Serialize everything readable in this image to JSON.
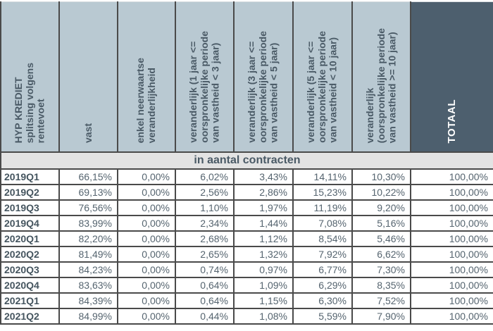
{
  "colors": {
    "header_bg": "#b9c9d2",
    "header_text": "#4a5a66",
    "totaal_bg": "#4d5f6e",
    "totaal_text": "#ffffff",
    "subheader_bg": "#e3e3e3",
    "border": "#4a4a4a",
    "data_text": "#55646f",
    "label_text": "#45555f",
    "row_bg": "#ffffff"
  },
  "table": {
    "columns": [
      {
        "label": "HYP KREDIET\nsplitsing volgens\nrentevoet"
      },
      {
        "label": "vast"
      },
      {
        "label": "enkel neerwaartse\nveranderlijkheid"
      },
      {
        "label": "veranderlijk (1 jaar <=\noorspronkelijke periode\nvan vastheid < 3 jaar)"
      },
      {
        "label": "veranderlijk (3 jaar <=\noorspronkelijke periode\nvan vastheid < 5 jaar)"
      },
      {
        "label": "veranderlijk (5 jaar <=\noorspronkelijke periode\nvan vastheid < 10 jaar)"
      },
      {
        "label": "veranderlijk\n(oorspronkelijke periode\nvan vastheid >= 10 jaar)"
      },
      {
        "label": "TOTAAL"
      }
    ],
    "section_header": "in aantal contracten",
    "rows": [
      {
        "period": "2019Q1",
        "values": [
          "66,15%",
          "0,00%",
          "6,02%",
          "3,43%",
          "14,11%",
          "10,30%",
          "100,00%"
        ]
      },
      {
        "period": "2019Q2",
        "values": [
          "69,13%",
          "0,00%",
          "2,56%",
          "2,86%",
          "15,23%",
          "10,22%",
          "100,00%"
        ]
      },
      {
        "period": "2019Q3",
        "values": [
          "76,56%",
          "0,00%",
          "1,10%",
          "1,97%",
          "11,19%",
          "9,20%",
          "100,00%"
        ]
      },
      {
        "period": "2019Q4",
        "values": [
          "83,99%",
          "0,00%",
          "2,34%",
          "1,44%",
          "7,08%",
          "5,16%",
          "100,00%"
        ]
      },
      {
        "period": "2020Q1",
        "values": [
          "82,20%",
          "0,00%",
          "2,68%",
          "1,12%",
          "8,54%",
          "5,46%",
          "100,00%"
        ]
      },
      {
        "period": "2020Q2",
        "values": [
          "81,49%",
          "0,00%",
          "2,65%",
          "1,32%",
          "7,92%",
          "6,62%",
          "100,00%"
        ]
      },
      {
        "period": "2020Q3",
        "values": [
          "84,23%",
          "0,00%",
          "0,74%",
          "0,97%",
          "6,77%",
          "7,30%",
          "100,00%"
        ]
      },
      {
        "period": "2020Q4",
        "values": [
          "83,63%",
          "0,00%",
          "0,64%",
          "1,09%",
          "6,29%",
          "8,35%",
          "100,00%"
        ]
      },
      {
        "period": "2021Q1",
        "values": [
          "84,39%",
          "0,00%",
          "0,64%",
          "1,15%",
          "6,30%",
          "7,52%",
          "100,00%"
        ]
      },
      {
        "period": "2021Q2",
        "values": [
          "84,99%",
          "0,00%",
          "0,44%",
          "1,08%",
          "5,59%",
          "7,90%",
          "100,00%"
        ]
      }
    ]
  }
}
